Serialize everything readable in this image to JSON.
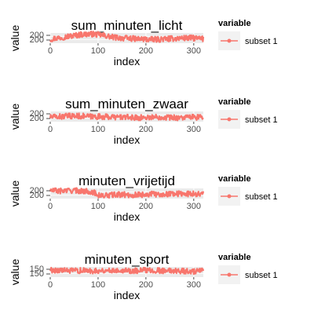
{
  "chart_data": [
    {
      "type": "line",
      "title": "sum_minuten_licht",
      "xlabel": "index",
      "ylabel": "value",
      "xlim": [
        0,
        320
      ],
      "xticks": [
        0,
        100,
        200,
        300
      ],
      "ylim": [
        190,
        215
      ],
      "yticks": [
        200,
        200
      ],
      "ytick_labels": [
        "200",
        "200"
      ],
      "grid": true,
      "legend": {
        "title": "variable",
        "placement": "right",
        "entries": [
          "subset 1"
        ]
      },
      "series": [
        {
          "name": "subset 1",
          "color": "#F8766D",
          "profile": [
            0.4,
            0.55,
            0.7,
            0.85,
            0.9,
            0.8,
            0.6,
            0.5,
            0.45,
            0.4,
            0.35,
            0.4,
            0.45,
            0.5,
            0.5,
            0.4
          ]
        }
      ]
    },
    {
      "type": "line",
      "title": "sum_minuten_zwaar",
      "xlabel": "index",
      "ylabel": "value",
      "xlim": [
        0,
        320
      ],
      "xticks": [
        0,
        100,
        200,
        300
      ],
      "ylim": [
        180,
        215
      ],
      "yticks": [
        200,
        200
      ],
      "ytick_labels": [
        "200",
        "200"
      ],
      "grid": true,
      "legend": {
        "title": "variable",
        "placement": "right",
        "entries": [
          "subset 1"
        ]
      },
      "series": [
        {
          "name": "subset 1",
          "color": "#F8766D",
          "profile": [
            0.45,
            0.5,
            0.55,
            0.55,
            0.5,
            0.5,
            0.45,
            0.45,
            0.4,
            0.4,
            0.45,
            0.45,
            0.4,
            0.4,
            0.45,
            0.4
          ]
        }
      ]
    },
    {
      "type": "line",
      "title": "minuten_vrijetijd",
      "xlabel": "index",
      "ylabel": "value",
      "xlim": [
        0,
        320
      ],
      "xticks": [
        0,
        100,
        200,
        300
      ],
      "ylim": [
        180,
        215
      ],
      "yticks": [
        200,
        200
      ],
      "ytick_labels": [
        "200",
        "200"
      ],
      "grid": true,
      "legend": {
        "title": "variable",
        "placement": "right",
        "entries": [
          "subset 1"
        ]
      },
      "series": [
        {
          "name": "subset 1",
          "color": "#F8766D",
          "profile": [
            0.8,
            0.75,
            0.8,
            0.75,
            0.7,
            0.25,
            0.35,
            0.4,
            0.35,
            0.4,
            0.45,
            0.4,
            0.5,
            0.45,
            0.5,
            0.45
          ]
        }
      ]
    },
    {
      "type": "line",
      "title": "minuten_sport",
      "xlabel": "index",
      "ylabel": "value",
      "xlim": [
        0,
        320
      ],
      "xticks": [
        0,
        100,
        200,
        300
      ],
      "ylim": [
        130,
        165
      ],
      "yticks": [
        150,
        150
      ],
      "ytick_labels": [
        "150",
        "150"
      ],
      "grid": true,
      "legend": {
        "title": "variable",
        "placement": "right",
        "entries": [
          "subset 1"
        ]
      },
      "series": [
        {
          "name": "subset 1",
          "color": "#F8766D",
          "profile": [
            0.7,
            0.65,
            0.6,
            0.65,
            0.6,
            0.65,
            0.65,
            0.7,
            0.6,
            0.65,
            0.7,
            0.6,
            0.65,
            0.6,
            0.55,
            0.6
          ]
        }
      ]
    }
  ]
}
